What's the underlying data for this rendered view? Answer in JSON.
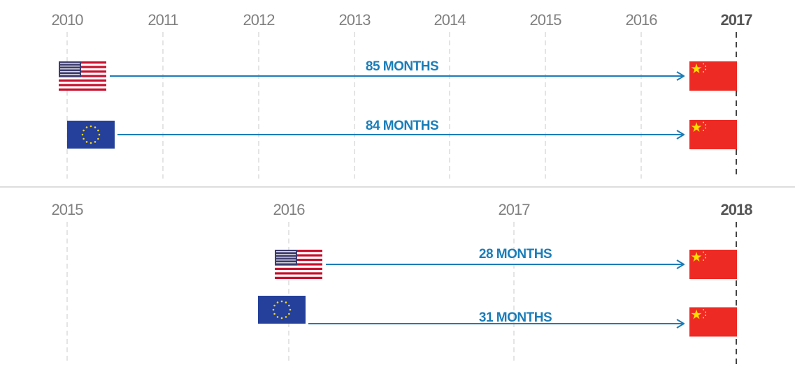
{
  "panels": [
    {
      "years": [
        "2010",
        "2011",
        "2012",
        "2013",
        "2014",
        "2015",
        "2016",
        "2017"
      ],
      "rows": [
        {
          "label": "85 MONTHS"
        },
        {
          "label": "84 MONTHS"
        }
      ]
    },
    {
      "years": [
        "2015",
        "2016",
        "2017",
        "2018"
      ],
      "rows": [
        {
          "label": "28 MONTHS"
        },
        {
          "label": "31 MONTHS"
        }
      ]
    }
  ]
}
